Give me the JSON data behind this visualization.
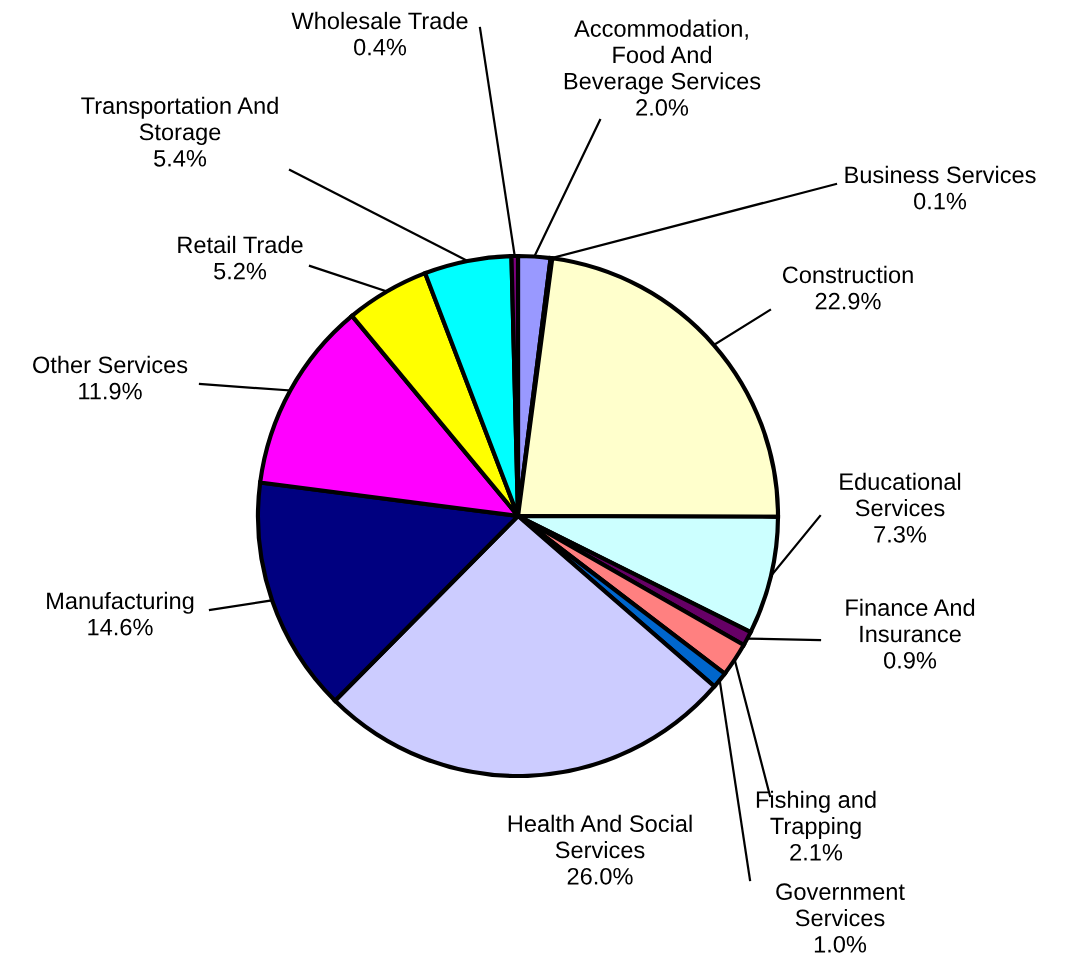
{
  "chart_data": {
    "type": "pie",
    "categories": [
      "Accommodation, Food And Beverage Services",
      "Business Services",
      "Construction",
      "Educational Services",
      "Finance And Insurance",
      "Fishing and Trapping",
      "Government Services",
      "Health And Social Services",
      "Manufacturing",
      "Other Services",
      "Retail Trade",
      "Transportation And Storage",
      "Wholesale Trade"
    ],
    "values": [
      2.0,
      0.1,
      22.9,
      7.3,
      0.9,
      2.1,
      1.0,
      26.0,
      14.6,
      11.9,
      5.2,
      5.4,
      0.4
    ],
    "value_labels": [
      "2.0%",
      "0.1%",
      "22.9%",
      "7.3%",
      "0.9%",
      "2.1%",
      "1.0%",
      "26.0%",
      "14.6%",
      "11.9%",
      "5.2%",
      "5.4%",
      "0.4%"
    ],
    "colors": [
      "#9999ff",
      "#000000",
      "#ffffcc",
      "#ccffff",
      "#660066",
      "#ff8080",
      "#0066cc",
      "#ccccff",
      "#000080",
      "#ff00ff",
      "#ffff00",
      "#00ffff",
      "#800080"
    ],
    "legend": false
  }
}
